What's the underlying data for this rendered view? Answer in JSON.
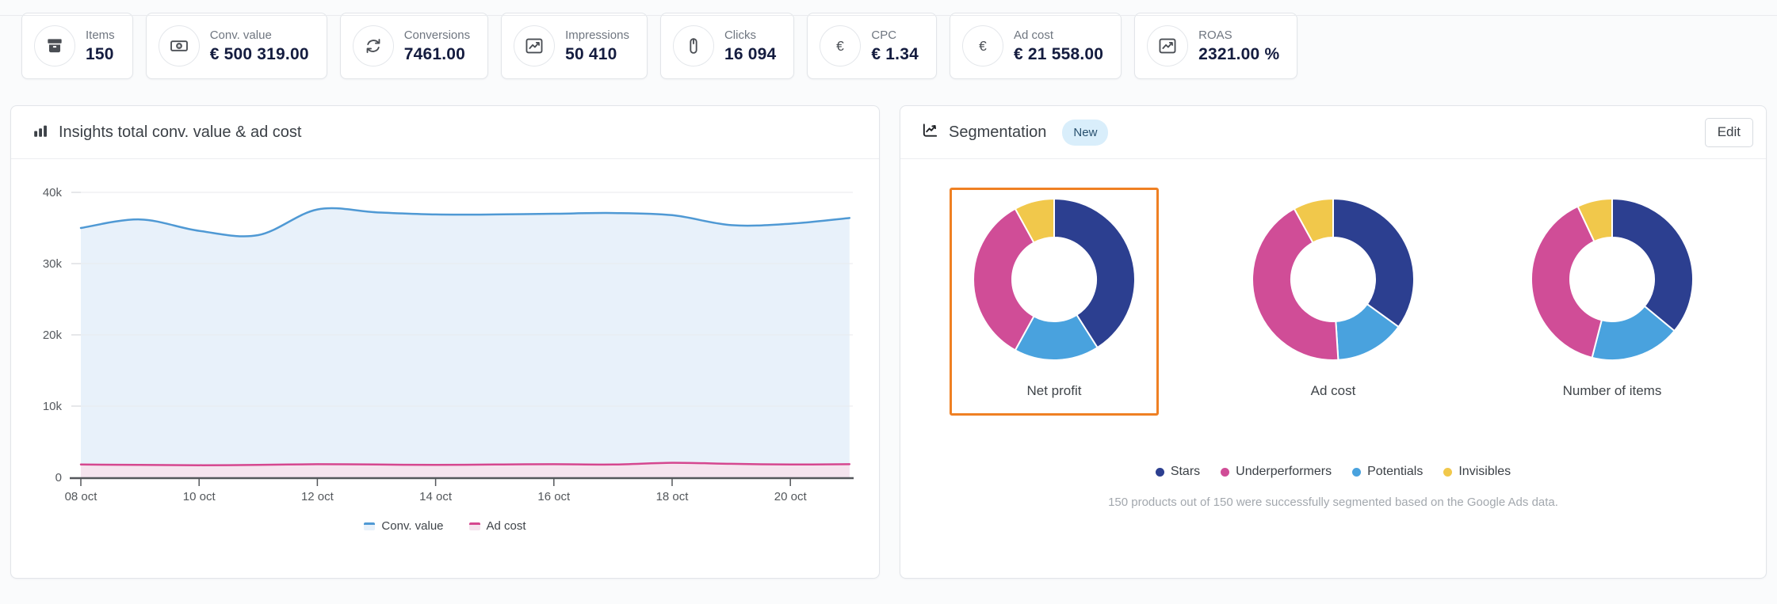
{
  "kpi_cards": [
    {
      "icon": "package-icon",
      "label": "Items",
      "value": "150"
    },
    {
      "icon": "banknote-icon",
      "label": "Conv. value",
      "value": "€ 500 319.00"
    },
    {
      "icon": "sync-icon",
      "label": "Conversions",
      "value": "7461.00"
    },
    {
      "icon": "chart-up-icon",
      "label": "Impressions",
      "value": "50 410"
    },
    {
      "icon": "mouse-icon",
      "label": "Clicks",
      "value": "16 094"
    },
    {
      "icon": "euro-icon",
      "label": "CPC",
      "value": "€ 1.34"
    },
    {
      "icon": "euro-icon",
      "label": "Ad cost",
      "value": "€ 21 558.00"
    },
    {
      "icon": "chart-up-icon",
      "label": "ROAS",
      "value": "2321.00 %"
    }
  ],
  "insights_panel": {
    "title": "Insights total conv. value & ad cost"
  },
  "segmentation_panel": {
    "title": "Segmentation",
    "badge": "New",
    "edit_label": "Edit",
    "legend": [
      {
        "label": "Stars",
        "color": "#2c3f90"
      },
      {
        "label": "Underperformers",
        "color": "#d04d97"
      },
      {
        "label": "Potentials",
        "color": "#49a2de"
      },
      {
        "label": "Invisibles",
        "color": "#f1c84b"
      }
    ],
    "selected_color": "#ef8023",
    "footnote": "150 products out of 150 were successfully segmented based on the Google Ads data."
  },
  "chart_data": [
    {
      "type": "area",
      "title": "Insights total conv. value & ad cost",
      "x": [
        "08 oct",
        "09 oct",
        "10 oct",
        "11 oct",
        "12 oct",
        "13 oct",
        "14 oct",
        "15 oct",
        "16 oct",
        "17 oct",
        "18 oct",
        "19 oct",
        "20 oct",
        "21 oct"
      ],
      "xticks": [
        "08 oct",
        "10 oct",
        "12 oct",
        "14 oct",
        "16 oct",
        "18 oct",
        "20 oct"
      ],
      "yticks": [
        {
          "label": "0",
          "value": 0
        },
        {
          "label": "10k",
          "value": 10000
        },
        {
          "label": "20k",
          "value": 20000
        },
        {
          "label": "30k",
          "value": 30000
        },
        {
          "label": "40k",
          "value": 40000
        }
      ],
      "ylim": [
        0,
        40000
      ],
      "grid": "horizontal",
      "legend_position": "bottom",
      "series": [
        {
          "name": "Conv. value",
          "color": "#4f99d4",
          "fill": "#e8f1fa",
          "values": [
            35000,
            36200,
            34600,
            34000,
            37600,
            37200,
            36900,
            36900,
            37000,
            37100,
            36800,
            35400,
            35600,
            36400
          ]
        },
        {
          "name": "Ad cost",
          "color": "#d5478f",
          "fill": "#f5e4ee",
          "values": [
            1800,
            1750,
            1700,
            1750,
            1850,
            1800,
            1750,
            1800,
            1850,
            1800,
            2050,
            1900,
            1800,
            1850
          ]
        }
      ]
    },
    {
      "type": "pie",
      "title": "Net profit",
      "selected": true,
      "labels": [
        "Stars",
        "Potentials",
        "Underperformers",
        "Invisibles"
      ],
      "values": [
        41,
        17,
        34,
        8
      ],
      "colors": [
        "#2c3f90",
        "#49a2de",
        "#d04d97",
        "#f1c84b"
      ]
    },
    {
      "type": "pie",
      "title": "Ad cost",
      "selected": false,
      "labels": [
        "Stars",
        "Potentials",
        "Underperformers",
        "Invisibles"
      ],
      "values": [
        35,
        14,
        43,
        8
      ],
      "colors": [
        "#2c3f90",
        "#49a2de",
        "#d04d97",
        "#f1c84b"
      ]
    },
    {
      "type": "pie",
      "title": "Number of items",
      "selected": false,
      "labels": [
        "Stars",
        "Potentials",
        "Underperformers",
        "Invisibles"
      ],
      "values": [
        36,
        18,
        39,
        7
      ],
      "colors": [
        "#2c3f90",
        "#49a2de",
        "#d04d97",
        "#f1c84b"
      ]
    }
  ]
}
